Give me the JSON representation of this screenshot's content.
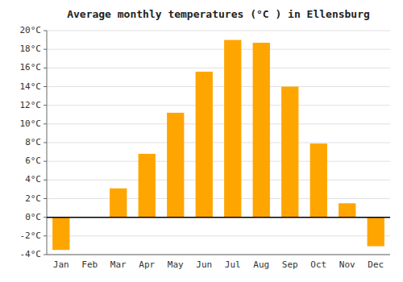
{
  "chart_data": {
    "type": "bar",
    "title": "Average monthly temperatures (°C ) in Ellensburg",
    "categories": [
      "Jan",
      "Feb",
      "Mar",
      "Apr",
      "May",
      "Jun",
      "Jul",
      "Aug",
      "Sep",
      "Oct",
      "Nov",
      "Dec"
    ],
    "values": [
      -3.5,
      0.0,
      3.1,
      6.8,
      11.2,
      15.6,
      19.0,
      18.7,
      14.0,
      7.9,
      1.5,
      -3.1
    ],
    "color": "#FFA500",
    "ylim": [
      -4,
      20
    ],
    "yticks": [
      {
        "value": -4,
        "label": "-4°C"
      },
      {
        "value": -2,
        "label": "-2°C"
      },
      {
        "value": 0,
        "label": "0°C"
      },
      {
        "value": 2,
        "label": "2°C"
      },
      {
        "value": 4,
        "label": "4°C"
      },
      {
        "value": 6,
        "label": "6°C"
      },
      {
        "value": 8,
        "label": "8°C"
      },
      {
        "value": 10,
        "label": "10°C"
      },
      {
        "value": 12,
        "label": "12°C"
      },
      {
        "value": 14,
        "label": "14°C"
      },
      {
        "value": 16,
        "label": "16°C"
      },
      {
        "value": 18,
        "label": "18°C"
      },
      {
        "value": 20,
        "label": "20°C"
      }
    ],
    "grid": true
  }
}
